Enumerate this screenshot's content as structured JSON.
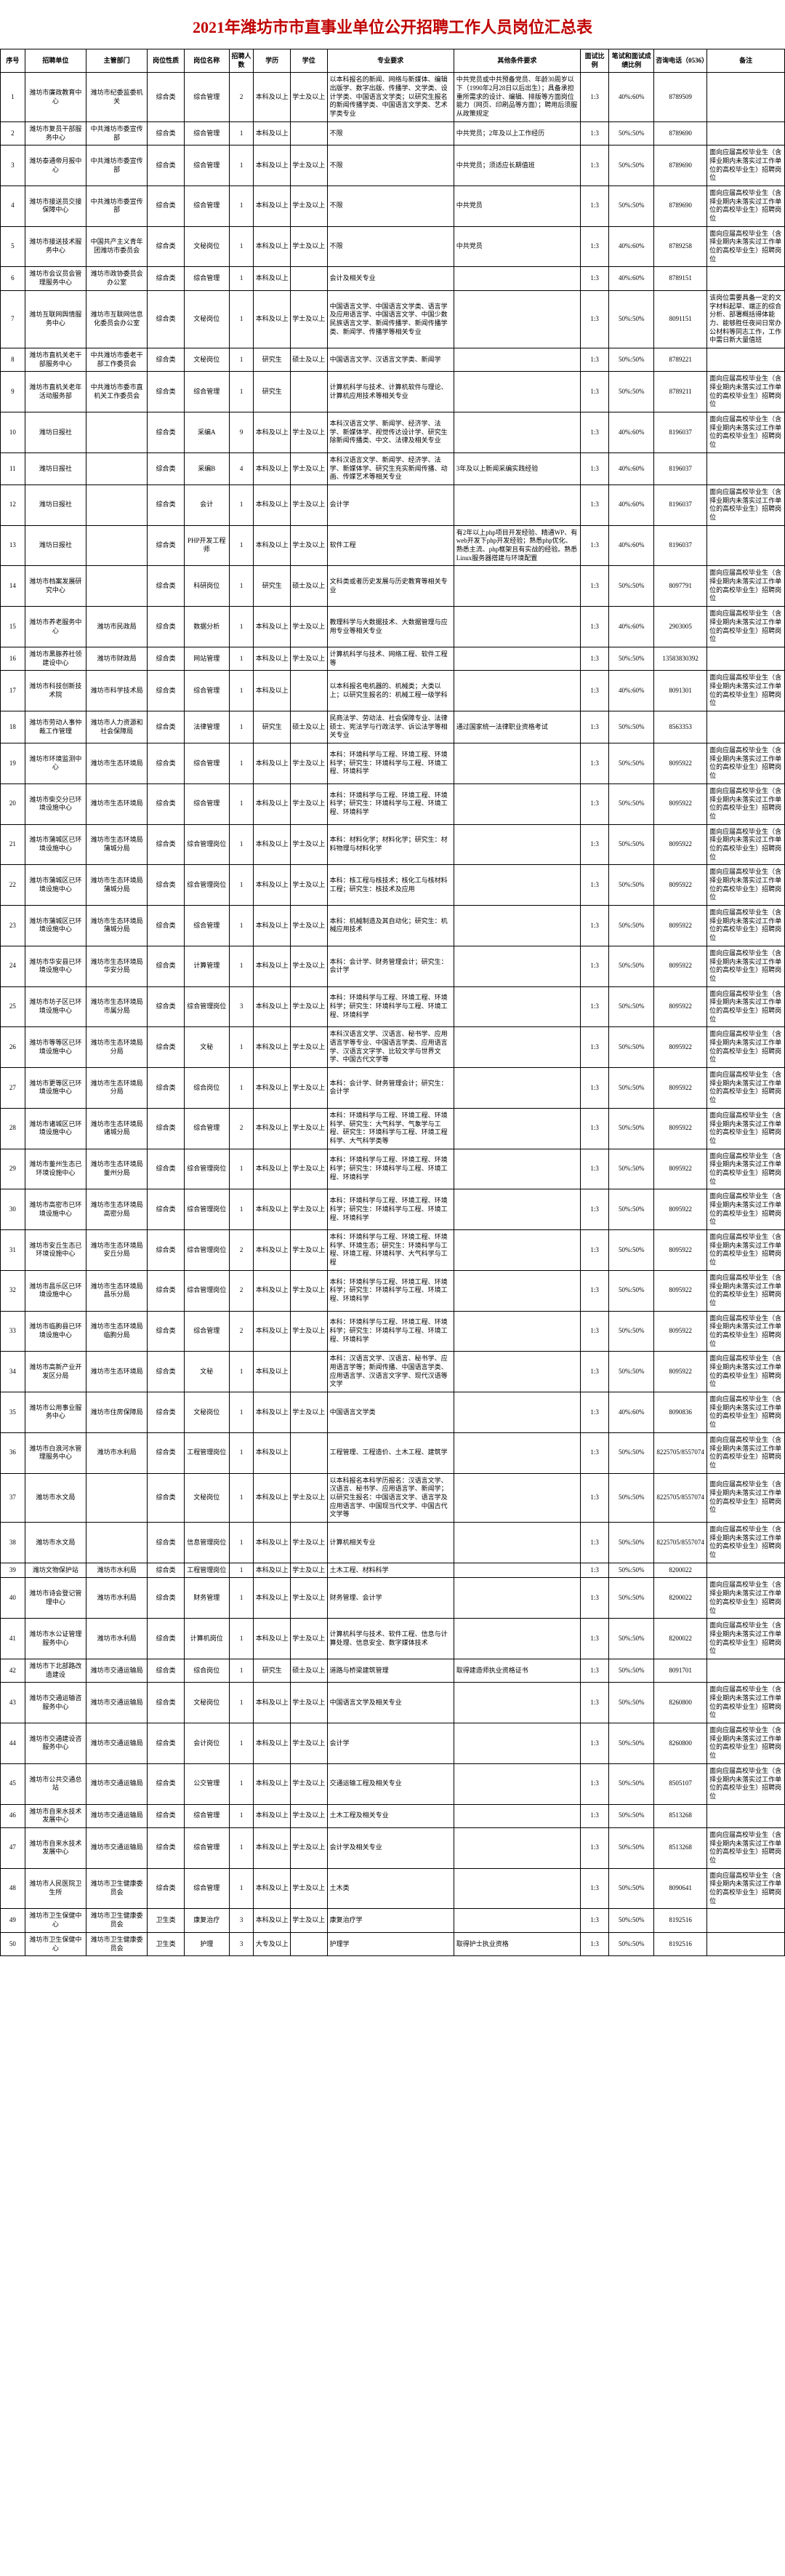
{
  "title": "2021年潍坊市市直事业单位公开招聘工作人员岗位汇总表",
  "headers": [
    "序号",
    "招聘单位",
    "主管部门",
    "岗位性质",
    "岗位名称",
    "招聘人数",
    "学历",
    "学位",
    "专业要求",
    "其他条件要求",
    "面试比例",
    "笔试和面试成绩比例",
    "咨询电话（0536）",
    "备注"
  ],
  "rows": [
    {
      "seq": "1",
      "unit": "潍坊市廉政教育中心",
      "dept": "潍坊市纪委监委机关",
      "type": "综合类",
      "posname": "综合管理",
      "num": "2",
      "edu": "本科及以上",
      "degree": "学士及以上",
      "major": "以本科报名的新闻、网络与新媒体、编辑出版学、数字出版、传播学、文学类、设计学类、中国语言文学类；以研究生报名的新闻传播学类、中国语言文学类、艺术学类专业",
      "other": "中共党员或中共预备党员、年龄30周岁以下（1990年2月28日以后出生）；具备承担重所需求的设计、编辑、排版等方面岗位能力（网页、印刷品等方面）；聘用后须服从政策规定",
      "ratio": "1:3",
      "score": "40%:60%",
      "phone": "8789509",
      "remark": ""
    },
    {
      "seq": "2",
      "unit": "潍坊市复员干部服务中心",
      "dept": "中共潍坊市委宣传部",
      "type": "综合类",
      "posname": "综合管理",
      "num": "1",
      "edu": "本科及以上",
      "degree": "",
      "major": "不限",
      "other": "中共党员；2年及以上工作经历",
      "ratio": "1:3",
      "score": "50%:50%",
      "phone": "8789690",
      "remark": ""
    },
    {
      "seq": "3",
      "unit": "潍坊泰通帝月报中心",
      "dept": "中共潍坊市委宣传部",
      "type": "综合类",
      "posname": "综合管理",
      "num": "1",
      "edu": "本科及以上",
      "degree": "学士及以上",
      "major": "不限",
      "other": "中共党员；须适应长期值班",
      "ratio": "1:3",
      "score": "50%:50%",
      "phone": "8789690",
      "remark": "面向应届高校毕业生（含择业期内未落实过工作单位的高校毕业生）招聘岗位"
    },
    {
      "seq": "4",
      "unit": "潍坊市接送员交接保障中心",
      "dept": "中共潍坊市委宣传部",
      "type": "综合类",
      "posname": "综合管理",
      "num": "1",
      "edu": "本科及以上",
      "degree": "学士及以上",
      "major": "不限",
      "other": "中共党员",
      "ratio": "1:3",
      "score": "50%:50%",
      "phone": "8789690",
      "remark": "面向应届高校毕业生（含择业期内未落实过工作单位的高校毕业生）招聘岗位"
    },
    {
      "seq": "5",
      "unit": "潍坊市接送技术服务中心",
      "dept": "中国共产主义青年团潍坊市委员会",
      "type": "综合类",
      "posname": "文秘岗位",
      "num": "1",
      "edu": "本科及以上",
      "degree": "学士及以上",
      "major": "不限",
      "other": "中共党员",
      "ratio": "1:3",
      "score": "40%:60%",
      "phone": "8789258",
      "remark": "面向应届高校毕业生（含择业期内未落实过工作单位的高校毕业生）招聘岗位"
    },
    {
      "seq": "6",
      "unit": "潍坊市会议员会管理服务中心",
      "dept": "潍坊市政协委员会办公室",
      "type": "综合类",
      "posname": "综合管理",
      "num": "1",
      "edu": "本科及以上",
      "degree": "",
      "major": "会计及相关专业",
      "other": "",
      "ratio": "1:3",
      "score": "40%:60%",
      "phone": "8789151",
      "remark": ""
    },
    {
      "seq": "7",
      "unit": "潍坊互联网舆情服务中心",
      "dept": "潍坊市互联网信息化委员会办公室",
      "type": "综合类",
      "posname": "文秘岗位",
      "num": "1",
      "edu": "本科及以上",
      "degree": "学士及以上",
      "major": "中国语言文学、中国语言文学类、语言学及应用语言学、中国语言文学、中国少数民族语言文学、新闻传播学、新闻传播学类、新闻学、传播学等相关专业",
      "other": "",
      "ratio": "1:3",
      "score": "50%:50%",
      "phone": "8091151",
      "remark": "该岗位需要具备一定的文字材料起草、端正的综合分析、部署概括得体能力、能够胜任夜间日常办公材料等同志工作，工作中需日新大量值班"
    },
    {
      "seq": "8",
      "unit": "潍坊市直机关老干部服务中心",
      "dept": "中共潍坊市委老干部工作委员会",
      "type": "综合类",
      "posname": "文秘岗位",
      "num": "1",
      "edu": "研究生",
      "degree": "硕士及以上",
      "major": "中国语言文学、汉语言文学类、新闻学",
      "other": "",
      "ratio": "1:3",
      "score": "50%:50%",
      "phone": "8789221",
      "remark": ""
    },
    {
      "seq": "9",
      "unit": "潍坊市直机关老年活动服务部",
      "dept": "中共潍坊市委市直机关工作委员会",
      "type": "综合类",
      "posname": "综合管理",
      "num": "1",
      "edu": "研究生",
      "degree": "",
      "major": "计算机科学与技术、计算机软件与理论、计算机应用技术等相关专业",
      "other": "",
      "ratio": "1:3",
      "score": "50%:50%",
      "phone": "8789211",
      "remark": "面向应届高校毕业生（含择业期内未落实过工作单位的高校毕业生）招聘岗位"
    },
    {
      "seq": "10",
      "unit": "潍坊日报社",
      "dept": "",
      "type": "综合类",
      "posname": "采编A",
      "num": "9",
      "edu": "本科及以上",
      "degree": "学士及以上",
      "major": "本科汉语言文学、新闻学、经济学、法学、新媒体学、视觉传达设计学、研究生除新闻传播类、中文、法律及相关专业",
      "other": "",
      "ratio": "1:3",
      "score": "40%:60%",
      "phone": "8196037",
      "remark": "面向应届高校毕业生（含择业期内未落实过工作单位的高校毕业生）招聘岗位"
    },
    {
      "seq": "11",
      "unit": "潍坊日报社",
      "dept": "",
      "type": "综合类",
      "posname": "采编B",
      "num": "4",
      "edu": "本科及以上",
      "degree": "学士及以上",
      "major": "本科汉语言文学、新闻学、经济学、法学、新媒体学、研究生充实新闻传播、动画、传媒艺术等相关专业",
      "other": "3年及以上新闻采编实践经验",
      "ratio": "1:3",
      "score": "40%:60%",
      "phone": "8196037",
      "remark": ""
    },
    {
      "seq": "12",
      "unit": "潍坊日报社",
      "dept": "",
      "type": "综合类",
      "posname": "会计",
      "num": "1",
      "edu": "本科及以上",
      "degree": "学士及以上",
      "major": "会计学",
      "other": "",
      "ratio": "1:3",
      "score": "40%:60%",
      "phone": "8196037",
      "remark": "面向应届高校毕业生（含择业期内未落实过工作单位的高校毕业生）招聘岗位"
    },
    {
      "seq": "13",
      "unit": "潍坊日报社",
      "dept": "",
      "type": "综合类",
      "posname": "PHP开发工程师",
      "num": "1",
      "edu": "本科及以上",
      "degree": "学士及以上",
      "major": "软件工程",
      "other": "有2年以上php项目开发经验、精通WP、有web开发下php开发经验；熟悉php优化、熟悉主流、php框架且有实战的经验。熟悉Linux服务器搭建与环境配置",
      "ratio": "1:3",
      "score": "40%:60%",
      "phone": "8196037",
      "remark": ""
    },
    {
      "seq": "14",
      "unit": "潍坊市档案发展研究中心",
      "dept": "",
      "type": "综合类",
      "posname": "科研岗位",
      "num": "1",
      "edu": "研究生",
      "degree": "硕士及以上",
      "major": "文科类或者历史发展与历史教育等相关专业",
      "other": "",
      "ratio": "1:3",
      "score": "50%:50%",
      "phone": "8097791",
      "remark": "面向应届高校毕业生（含择业期内未落实过工作单位的高校毕业生）招聘岗位"
    },
    {
      "seq": "15",
      "unit": "潍坊市养老服务中心",
      "dept": "潍坊市民政局",
      "type": "综合类",
      "posname": "数据分析",
      "num": "1",
      "edu": "本科及以上",
      "degree": "学士及以上",
      "major": "教理科学与大数据技术、大数据管理与应用专业等相关专业",
      "other": "",
      "ratio": "1:3",
      "score": "40%:60%",
      "phone": "2903005",
      "remark": "面向应届高校毕业生（含择业期内未落实过工作单位的高校毕业生）招聘岗位"
    },
    {
      "seq": "16",
      "unit": "潍坊市黑豚养社领建设中心",
      "dept": "潍坊市财政局",
      "type": "综合类",
      "posname": "网站管理",
      "num": "1",
      "edu": "本科及以上",
      "degree": "学士及以上",
      "major": "计算机科学与技术、网络工程、软件工程等",
      "other": "",
      "ratio": "1:3",
      "score": "50%:50%",
      "phone": "13583830392",
      "remark": ""
    },
    {
      "seq": "17",
      "unit": "潍坊市科技创新技术院",
      "dept": "潍坊市科学技术局",
      "type": "综合类",
      "posname": "综合管理",
      "num": "1",
      "edu": "本科及以上",
      "degree": "",
      "major": "以本科报名电机器的、机械类；大类以上；以研究生报名的：机械工程一级学科",
      "other": "",
      "ratio": "1:3",
      "score": "40%:60%",
      "phone": "8091301",
      "remark": "面向应届高校毕业生（含择业期内未落实过工作单位的高校毕业生）招聘岗位"
    },
    {
      "seq": "18",
      "unit": "潍坊市劳动人事仲裁工作管理",
      "dept": "潍坊市人力资源和社会保障局",
      "type": "综合类",
      "posname": "法律管理",
      "num": "1",
      "edu": "研究生",
      "degree": "硕士及以上",
      "major": "民商法学、劳动法、社会保障专业、法律硕士、宪法学与行政法学、诉讼法学等相关专业",
      "other": "通过国家统一法律职业资格考试",
      "ratio": "1:3",
      "score": "50%:50%",
      "phone": "8563353",
      "remark": ""
    },
    {
      "seq": "19",
      "unit": "潍坊市环境监测中心",
      "dept": "潍坊市生态环境局",
      "type": "综合类",
      "posname": "综合管理",
      "num": "1",
      "edu": "本科及以上",
      "degree": "学士及以上",
      "major": "本科：环境科学与工程、环境工程、环境科学；研究生：环境科学与工程、环境工程、环境科学",
      "other": "",
      "ratio": "1:3",
      "score": "50%:50%",
      "phone": "8095922",
      "remark": "面向应届高校毕业生（含择业期内未落实过工作单位的高校毕业生）招聘岗位"
    },
    {
      "seq": "20",
      "unit": "潍坊市柴交分已环境设施中心",
      "dept": "潍坊市生态环境局",
      "type": "综合类",
      "posname": "综合管理",
      "num": "1",
      "edu": "本科及以上",
      "degree": "学士及以上",
      "major": "本科：环境科学与工程、环境工程、环境科学；研究生：环境科学与工程、环境工程、环境科学",
      "other": "",
      "ratio": "1:3",
      "score": "50%:50%",
      "phone": "8095922",
      "remark": "面向应届高校毕业生（含择业期内未落实过工作单位的高校毕业生）招聘岗位"
    },
    {
      "seq": "21",
      "unit": "潍坊市蒲城区已环境设施中心",
      "dept": "潍坊市生态环境局蒲城分局",
      "type": "综合类",
      "posname": "综合管理岗位",
      "num": "1",
      "edu": "本科及以上",
      "degree": "学士及以上",
      "major": "本科：材料化学；材料化学；研究生：材料物理与材料化学",
      "other": "",
      "ratio": "1:3",
      "score": "50%:50%",
      "phone": "8095922",
      "remark": "面向应届高校毕业生（含择业期内未落实过工作单位的高校毕业生）招聘岗位"
    },
    {
      "seq": "22",
      "unit": "潍坊市蒲城区已环境设施中心",
      "dept": "潍坊市生态环境局蒲城分局",
      "type": "综合类",
      "posname": "综合管理岗位",
      "num": "1",
      "edu": "本科及以上",
      "degree": "学士及以上",
      "major": "本科：核工程与核技术；核化工与核材料工程；研究生：核技术及应用",
      "other": "",
      "ratio": "1:3",
      "score": "50%:50%",
      "phone": "8095922",
      "remark": "面向应届高校毕业生（含择业期内未落实过工作单位的高校毕业生）招聘岗位"
    },
    {
      "seq": "23",
      "unit": "潍坊市蒲城区已环境设施中心",
      "dept": "潍坊市生态环境局蒲城分局",
      "type": "综合类",
      "posname": "综合管理",
      "num": "1",
      "edu": "本科及以上",
      "degree": "学士及以上",
      "major": "本科：机械制造及其自动化；研究生：机械应用技术",
      "other": "",
      "ratio": "1:3",
      "score": "50%:50%",
      "phone": "8095922",
      "remark": "面向应届高校毕业生（含择业期内未落实过工作单位的高校毕业生）招聘岗位"
    },
    {
      "seq": "24",
      "unit": "潍坊市华安县已环境设施中心",
      "dept": "潍坊市生态环境局华安分局",
      "type": "综合类",
      "posname": "计算管理",
      "num": "1",
      "edu": "本科及以上",
      "degree": "学士及以上",
      "major": "本科：会计学、财务管理会计；研究生：会计学",
      "other": "",
      "ratio": "1:3",
      "score": "50%:50%",
      "phone": "8095922",
      "remark": "面向应届高校毕业生（含择业期内未落实过工作单位的高校毕业生）招聘岗位"
    },
    {
      "seq": "25",
      "unit": "潍坊市坊子区已环境设施中心",
      "dept": "潍坊市生态环境局市属分局",
      "type": "综合类",
      "posname": "综合管理岗位",
      "num": "3",
      "edu": "本科及以上",
      "degree": "学士及以上",
      "major": "本科：环境科学与工程、环境工程、环境科学；研究生：环境科学与工程、环境工程、环境科学",
      "other": "",
      "ratio": "1:3",
      "score": "50%:50%",
      "phone": "8095922",
      "remark": "面向应届高校毕业生（含择业期内未落实过工作单位的高校毕业生）招聘岗位"
    },
    {
      "seq": "26",
      "unit": "潍坊市等等区已环境设施中心",
      "dept": "潍坊市生态环境局分局",
      "type": "综合类",
      "posname": "文秘",
      "num": "1",
      "edu": "本科及以上",
      "degree": "学士及以上",
      "major": "本科汉语言文学、汉语言、秘书学、应用语言学等专业、中国语言学类、应用语言学、汉语言文字学、比较文学与世界文学、中国古代文学等",
      "other": "",
      "ratio": "1:3",
      "score": "50%:50%",
      "phone": "8095922",
      "remark": "面向应届高校毕业生（含择业期内未落实过工作单位的高校毕业生）招聘岗位"
    },
    {
      "seq": "27",
      "unit": "潍坊市更等区已环境设施中心",
      "dept": "潍坊市生态环境局分局",
      "type": "综合类",
      "posname": "综合岗位",
      "num": "1",
      "edu": "本科及以上",
      "degree": "学士及以上",
      "major": "本科：会计学、财务管理会计；研究生：会计学",
      "other": "",
      "ratio": "1:3",
      "score": "50%:50%",
      "phone": "8095922",
      "remark": "面向应届高校毕业生（含择业期内未落实过工作单位的高校毕业生）招聘岗位"
    },
    {
      "seq": "28",
      "unit": "潍坊市诸城区已环境设施中心",
      "dept": "潍坊市生态环境局诸城分局",
      "type": "综合类",
      "posname": "综合管理",
      "num": "2",
      "edu": "本科及以上",
      "degree": "学士及以上",
      "major": "本科：环境科学与工程、环境工程、环境科学、研究生：大气科学、气象学与工程、研究生：环境科学与工程、环境工程科学、大气科学类等",
      "other": "",
      "ratio": "1:3",
      "score": "50%:50%",
      "phone": "8095922",
      "remark": "面向应届高校毕业生（含择业期内未落实过工作单位的高校毕业生）招聘岗位"
    },
    {
      "seq": "29",
      "unit": "潍坊市董州生态已环境设施中心",
      "dept": "潍坊市生态环境局董州分局",
      "type": "综合类",
      "posname": "综合管理岗位",
      "num": "1",
      "edu": "本科及以上",
      "degree": "学士及以上",
      "major": "本科：环境科学与工程、环境工程、环境科学；研究生：环境科学与工程、环境工程、环境科学",
      "other": "",
      "ratio": "1:3",
      "score": "50%:50%",
      "phone": "8095922",
      "remark": "面向应届高校毕业生（含择业期内未落实过工作单位的高校毕业生）招聘岗位"
    },
    {
      "seq": "30",
      "unit": "潍坊市高密市已环境设施中心",
      "dept": "潍坊市生态环境局高密分局",
      "type": "综合类",
      "posname": "综合管理岗位",
      "num": "1",
      "edu": "本科及以上",
      "degree": "学士及以上",
      "major": "本科：环境科学与工程、环境工程、环境科学；研究生：环境科学与工程、环境工程、环境科学",
      "other": "",
      "ratio": "1:3",
      "score": "50%:50%",
      "phone": "8095922",
      "remark": "面向应届高校毕业生（含择业期内未落实过工作单位的高校毕业生）招聘岗位"
    },
    {
      "seq": "31",
      "unit": "潍坊市安丘生态已环境设施中心",
      "dept": "潍坊市生态环境局安丘分局",
      "type": "综合类",
      "posname": "综合管理岗位",
      "num": "2",
      "edu": "本科及以上",
      "degree": "学士及以上",
      "major": "本科：环境科学与工程、环境工程、环境科学、环境生态；研究生：环境科学与工程、环境工程、环境科学、大气科学与工程",
      "other": "",
      "ratio": "1:3",
      "score": "50%:50%",
      "phone": "8095922",
      "remark": "面向应届高校毕业生（含择业期内未落实过工作单位的高校毕业生）招聘岗位"
    },
    {
      "seq": "32",
      "unit": "潍坊市昌乐区已环境设施中心",
      "dept": "潍坊市生态环境局昌乐分局",
      "type": "综合类",
      "posname": "综合管理岗位",
      "num": "2",
      "edu": "本科及以上",
      "degree": "学士及以上",
      "major": "本科：环境科学与工程、环境工程、环境科学；研究生：环境科学与工程、环境工程、环境科学",
      "other": "",
      "ratio": "1:3",
      "score": "50%:50%",
      "phone": "8095922",
      "remark": "面向应届高校毕业生（含择业期内未落实过工作单位的高校毕业生）招聘岗位"
    },
    {
      "seq": "33",
      "unit": "潍坊市临朐县已环境设施中心",
      "dept": "潍坊市生态环境局临朐分局",
      "type": "综合类",
      "posname": "综合管理",
      "num": "2",
      "edu": "本科及以上",
      "degree": "学士及以上",
      "major": "本科：环境科学与工程、环境工程、环境科学；研究生：环境科学与工程、环境工程、环境科学",
      "other": "",
      "ratio": "1:3",
      "score": "50%:50%",
      "phone": "8095922",
      "remark": "面向应届高校毕业生（含择业期内未落实过工作单位的高校毕业生）招聘岗位"
    },
    {
      "seq": "34",
      "unit": "潍坊市高新产业开发区分局",
      "dept": "潍坊市生态环境局",
      "type": "综合类",
      "posname": "文秘",
      "num": "1",
      "edu": "本科及以上",
      "degree": "",
      "major": "本科：汉语言文学、汉语言、秘书学、应用语言学等；新闻传播、中国语言学类、应用语言学、汉语言文字学、现代汉语等文学",
      "other": "",
      "ratio": "1:3",
      "score": "50%:50%",
      "phone": "8095922",
      "remark": "面向应届高校毕业生（含择业期内未落实过工作单位的高校毕业生）招聘岗位"
    },
    {
      "seq": "35",
      "unit": "潍坊市公用事业服务中心",
      "dept": "潍坊市住房保障局",
      "type": "综合类",
      "posname": "文秘岗位",
      "num": "1",
      "edu": "本科及以上",
      "degree": "学士及以上",
      "major": "中国语言文学类",
      "other": "",
      "ratio": "1:3",
      "score": "40%:60%",
      "phone": "8090836",
      "remark": "面向应届高校毕业生（含择业期内未落实过工作单位的高校毕业生）招聘岗位"
    },
    {
      "seq": "36",
      "unit": "潍坊市白浪河水管理服务中心",
      "dept": "潍坊市水利局",
      "type": "综合类",
      "posname": "工程管理岗位",
      "num": "1",
      "edu": "本科及以上",
      "degree": "",
      "major": "工程管理、工程造价、土木工程、建筑学",
      "other": "",
      "ratio": "1:3",
      "score": "50%:50%",
      "phone": "8225705/8557074",
      "remark": "面向应届高校毕业生（含择业期内未落实过工作单位的高校毕业生）招聘岗位"
    },
    {
      "seq": "37",
      "unit": "潍坊市水文局",
      "dept": "",
      "type": "综合类",
      "posname": "文秘岗位",
      "num": "1",
      "edu": "本科及以上",
      "degree": "学士及以上",
      "major": "以本科报名本科学历报名：汉语言文学、汉语言、秘书学、应用语言学、新闻学；以研究生报名：中国语言文学、语言学及应用语言学、中国现当代文学、中国古代文学等",
      "other": "",
      "ratio": "1:3",
      "score": "50%:50%",
      "phone": "8225705/8557074",
      "remark": "面向应届高校毕业生（含择业期内未落实过工作单位的高校毕业生）招聘岗位"
    },
    {
      "seq": "38",
      "unit": "潍坊市水文局",
      "dept": "",
      "type": "综合类",
      "posname": "信息管理岗位",
      "num": "1",
      "edu": "本科及以上",
      "degree": "学士及以上",
      "major": "计算机相关专业",
      "other": "",
      "ratio": "1:3",
      "score": "50%:50%",
      "phone": "8225705/8557074",
      "remark": "面向应届高校毕业生（含择业期内未落实过工作单位的高校毕业生）招聘岗位"
    },
    {
      "seq": "39",
      "unit": "潍坊文物保护站",
      "dept": "潍坊市水利局",
      "type": "综合类",
      "posname": "工程管理岗位",
      "num": "1",
      "edu": "本科及以上",
      "degree": "学士及以上",
      "major": "土木工程、材料科学",
      "other": "",
      "ratio": "1:3",
      "score": "50%:50%",
      "phone": "8200022",
      "remark": ""
    },
    {
      "seq": "40",
      "unit": "潍坊市诗会登记管理中心",
      "dept": "潍坊市水利局",
      "type": "综合类",
      "posname": "财务管理",
      "num": "1",
      "edu": "本科及以上",
      "degree": "学士及以上",
      "major": "财务管理、会计学",
      "other": "",
      "ratio": "1:3",
      "score": "50%:50%",
      "phone": "8200022",
      "remark": "面向应届高校毕业生（含择业期内未落实过工作单位的高校毕业生）招聘岗位"
    },
    {
      "seq": "41",
      "unit": "潍坊市水公证管理服务中心",
      "dept": "潍坊市水利局",
      "type": "综合类",
      "posname": "计算机岗位",
      "num": "1",
      "edu": "本科及以上",
      "degree": "学士及以上",
      "major": "计算机科学与技术、软件工程、信息与计算处理、信息安全、数字媒体技术",
      "other": "",
      "ratio": "1:3",
      "score": "50%:50%",
      "phone": "8200022",
      "remark": "面向应届高校毕业生（含择业期内未落实过工作单位的高校毕业生）招聘岗位"
    },
    {
      "seq": "42",
      "unit": "潍坊市下北部路改造建设",
      "dept": "潍坊市交通运输局",
      "type": "综合类",
      "posname": "综合岗位",
      "num": "1",
      "edu": "研究生",
      "degree": "硕士及以上",
      "major": "道路与桥梁建筑管理",
      "other": "取得建造师执业资格证书",
      "ratio": "1:3",
      "score": "50%:50%",
      "phone": "8091701",
      "remark": ""
    },
    {
      "seq": "43",
      "unit": "潍坊市交通运输咨服务中心",
      "dept": "潍坊市交通运输局",
      "type": "综合类",
      "posname": "文秘岗位",
      "num": "1",
      "edu": "本科及以上",
      "degree": "学士及以上",
      "major": "中国语言文学及相关专业",
      "other": "",
      "ratio": "1:3",
      "score": "50%:50%",
      "phone": "8260800",
      "remark": "面向应届高校毕业生（含择业期内未落实过工作单位的高校毕业生）招聘岗位"
    },
    {
      "seq": "44",
      "unit": "潍坊市交通建设咨服务中心",
      "dept": "潍坊市交通运输局",
      "type": "综合类",
      "posname": "会计岗位",
      "num": "1",
      "edu": "本科及以上",
      "degree": "学士及以上",
      "major": "会计学",
      "other": "",
      "ratio": "1:3",
      "score": "50%:50%",
      "phone": "8260800",
      "remark": "面向应届高校毕业生（含择业期内未落实过工作单位的高校毕业生）招聘岗位"
    },
    {
      "seq": "45",
      "unit": "潍坊市公共交通总站",
      "dept": "潍坊市交通运输局",
      "type": "综合类",
      "posname": "公交管理",
      "num": "1",
      "edu": "本科及以上",
      "degree": "学士及以上",
      "major": "交通运输工程及相关专业",
      "other": "",
      "ratio": "1:3",
      "score": "50%:50%",
      "phone": "8505107",
      "remark": "面向应届高校毕业生（含择业期内未落实过工作单位的高校毕业生）招聘岗位"
    },
    {
      "seq": "46",
      "unit": "潍坊市自来水技术发展中心",
      "dept": "潍坊市交通运输局",
      "type": "综合类",
      "posname": "综合管理",
      "num": "1",
      "edu": "本科及以上",
      "degree": "学士及以上",
      "major": "土木工程及相关专业",
      "other": "",
      "ratio": "1:3",
      "score": "50%:50%",
      "phone": "8513268",
      "remark": ""
    },
    {
      "seq": "47",
      "unit": "潍坊市自来水技术发展中心",
      "dept": "潍坊市交通运输局",
      "type": "综合类",
      "posname": "综合管理",
      "num": "1",
      "edu": "本科及以上",
      "degree": "学士及以上",
      "major": "会计学及相关专业",
      "other": "",
      "ratio": "1:3",
      "score": "50%:50%",
      "phone": "8513268",
      "remark": "面向应届高校毕业生（含择业期内未落实过工作单位的高校毕业生）招聘岗位"
    },
    {
      "seq": "48",
      "unit": "潍坊市人民医院卫生所",
      "dept": "潍坊市卫生健康委员会",
      "type": "综合类",
      "posname": "综合管理",
      "num": "1",
      "edu": "本科及以上",
      "degree": "学士及以上",
      "major": "土木类",
      "other": "",
      "ratio": "1:3",
      "score": "50%:50%",
      "phone": "8090641",
      "remark": "面向应届高校毕业生（含择业期内未落实过工作单位的高校毕业生）招聘岗位"
    },
    {
      "seq": "49",
      "unit": "潍坊市卫生保健中心",
      "dept": "潍坊市卫生健康委员会",
      "type": "卫生类",
      "posname": "康复治疗",
      "num": "3",
      "edu": "本科及以上",
      "degree": "学士及以上",
      "major": "康复治疗学",
      "other": "",
      "ratio": "1:3",
      "score": "50%:50%",
      "phone": "8192516",
      "remark": ""
    },
    {
      "seq": "50",
      "unit": "潍坊市卫生保健中心",
      "dept": "潍坊市卫生健康委员会",
      "type": "卫生类",
      "posname": "护理",
      "num": "3",
      "edu": "大专及以上",
      "degree": "",
      "major": "护理学",
      "other": "取得护士执业资格",
      "ratio": "1:3",
      "score": "50%:50%",
      "phone": "8192516",
      "remark": ""
    }
  ]
}
